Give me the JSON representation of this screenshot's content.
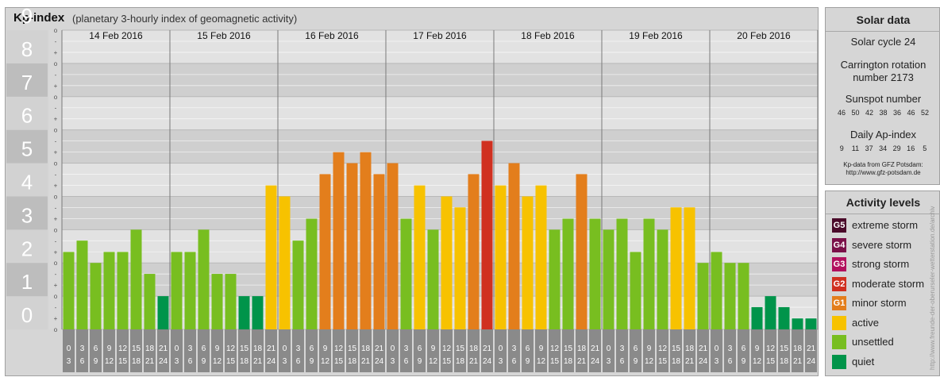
{
  "header": {
    "title": "Kp-index",
    "subtitle": "(planetary 3-hourly index of geomagnetic activity)"
  },
  "solar_panel": {
    "title": "Solar data",
    "cycle": "Solar cycle 24",
    "carrington_line1": "Carrington rotation",
    "carrington_line2": "number 2173",
    "sunspot_title": "Sunspot number",
    "sunspot_values": "46   50   42   38   36   46   52",
    "ap_title": "Daily Ap-index",
    "ap_values": "9    11   37   34   29   16    5",
    "source_line1": "Kp-data from GFZ Potsdam:",
    "source_line2": "http://www.gfz-potsdam.de"
  },
  "legend": {
    "title": "Activity levels",
    "items": [
      {
        "code": "G5",
        "label": "extreme storm",
        "color": "#4a0a2a"
      },
      {
        "code": "G4",
        "label": "severe storm",
        "color": "#7a1048"
      },
      {
        "code": "G3",
        "label": "strong storm",
        "color": "#b2105e"
      },
      {
        "code": "G2",
        "label": "moderate storm",
        "color": "#d03020"
      },
      {
        "code": "G1",
        "label": "minor storm",
        "color": "#e37e1c"
      },
      {
        "code": "",
        "label": "active",
        "color": "#f7c200"
      },
      {
        "code": "",
        "label": "unsettled",
        "color": "#78be20"
      },
      {
        "code": "",
        "label": "quiet",
        "color": "#00944a"
      }
    ]
  },
  "credit": "http://www.freunde-der-oberurseler-wetterstation.de/archiv",
  "chart_data": {
    "type": "bar",
    "title": "Kp-index",
    "subtitle": "(planetary 3-hourly index of geomagnetic activity)",
    "ylim": [
      0,
      9
    ],
    "y_ticks": [
      "0",
      "1",
      "2",
      "3",
      "4",
      "5",
      "6",
      "7",
      "8",
      "9"
    ],
    "sub_marks": [
      "-",
      "o",
      "+"
    ],
    "days": [
      "14 Feb 2016",
      "15 Feb 2016",
      "16 Feb 2016",
      "17 Feb 2016",
      "18 Feb 2016",
      "19 Feb 2016",
      "20 Feb 2016"
    ],
    "hour_start": [
      "0",
      "3",
      "6",
      "9",
      "12",
      "15",
      "18",
      "21"
    ],
    "hour_end": [
      "3",
      "6",
      "9",
      "12",
      "15",
      "18",
      "21",
      "24"
    ],
    "values": [
      [
        2.33,
        2.67,
        2.0,
        2.33,
        2.33,
        3.0,
        1.67,
        1.0
      ],
      [
        2.33,
        2.33,
        3.0,
        1.67,
        1.67,
        1.0,
        1.0,
        4.33
      ],
      [
        4.0,
        2.67,
        3.33,
        4.67,
        5.33,
        5.0,
        5.33,
        4.67
      ],
      [
        5.0,
        3.33,
        4.33,
        3.0,
        4.0,
        3.67,
        4.67,
        5.67
      ],
      [
        4.33,
        5.0,
        4.0,
        4.33,
        3.0,
        3.33,
        4.67,
        3.33
      ],
      [
        3.0,
        3.33,
        2.33,
        3.33,
        3.0,
        3.67,
        3.67,
        2.0
      ],
      [
        2.33,
        2.0,
        2.0,
        0.67,
        1.0,
        0.67,
        0.33,
        0.33
      ]
    ],
    "colors": [
      [
        "unsettled",
        "unsettled",
        "unsettled",
        "unsettled",
        "unsettled",
        "unsettled",
        "unsettled",
        "quiet"
      ],
      [
        "unsettled",
        "unsettled",
        "unsettled",
        "unsettled",
        "unsettled",
        "quiet",
        "quiet",
        "active"
      ],
      [
        "active",
        "unsettled",
        "unsettled",
        "minor",
        "minor",
        "minor",
        "minor",
        "minor"
      ],
      [
        "minor",
        "unsettled",
        "active",
        "unsettled",
        "active",
        "active",
        "minor",
        "moderate"
      ],
      [
        "active",
        "minor",
        "active",
        "active",
        "unsettled",
        "unsettled",
        "minor",
        "unsettled"
      ],
      [
        "unsettled",
        "unsettled",
        "unsettled",
        "unsettled",
        "unsettled",
        "active",
        "active",
        "unsettled"
      ],
      [
        "unsettled",
        "unsettled",
        "unsettled",
        "quiet",
        "quiet",
        "quiet",
        "quiet",
        "quiet"
      ]
    ],
    "palette": {
      "quiet": "#00944a",
      "unsettled": "#78be20",
      "active": "#f7c200",
      "minor": "#e37e1c",
      "moderate": "#d03020"
    },
    "grid": true,
    "legend": "right"
  }
}
